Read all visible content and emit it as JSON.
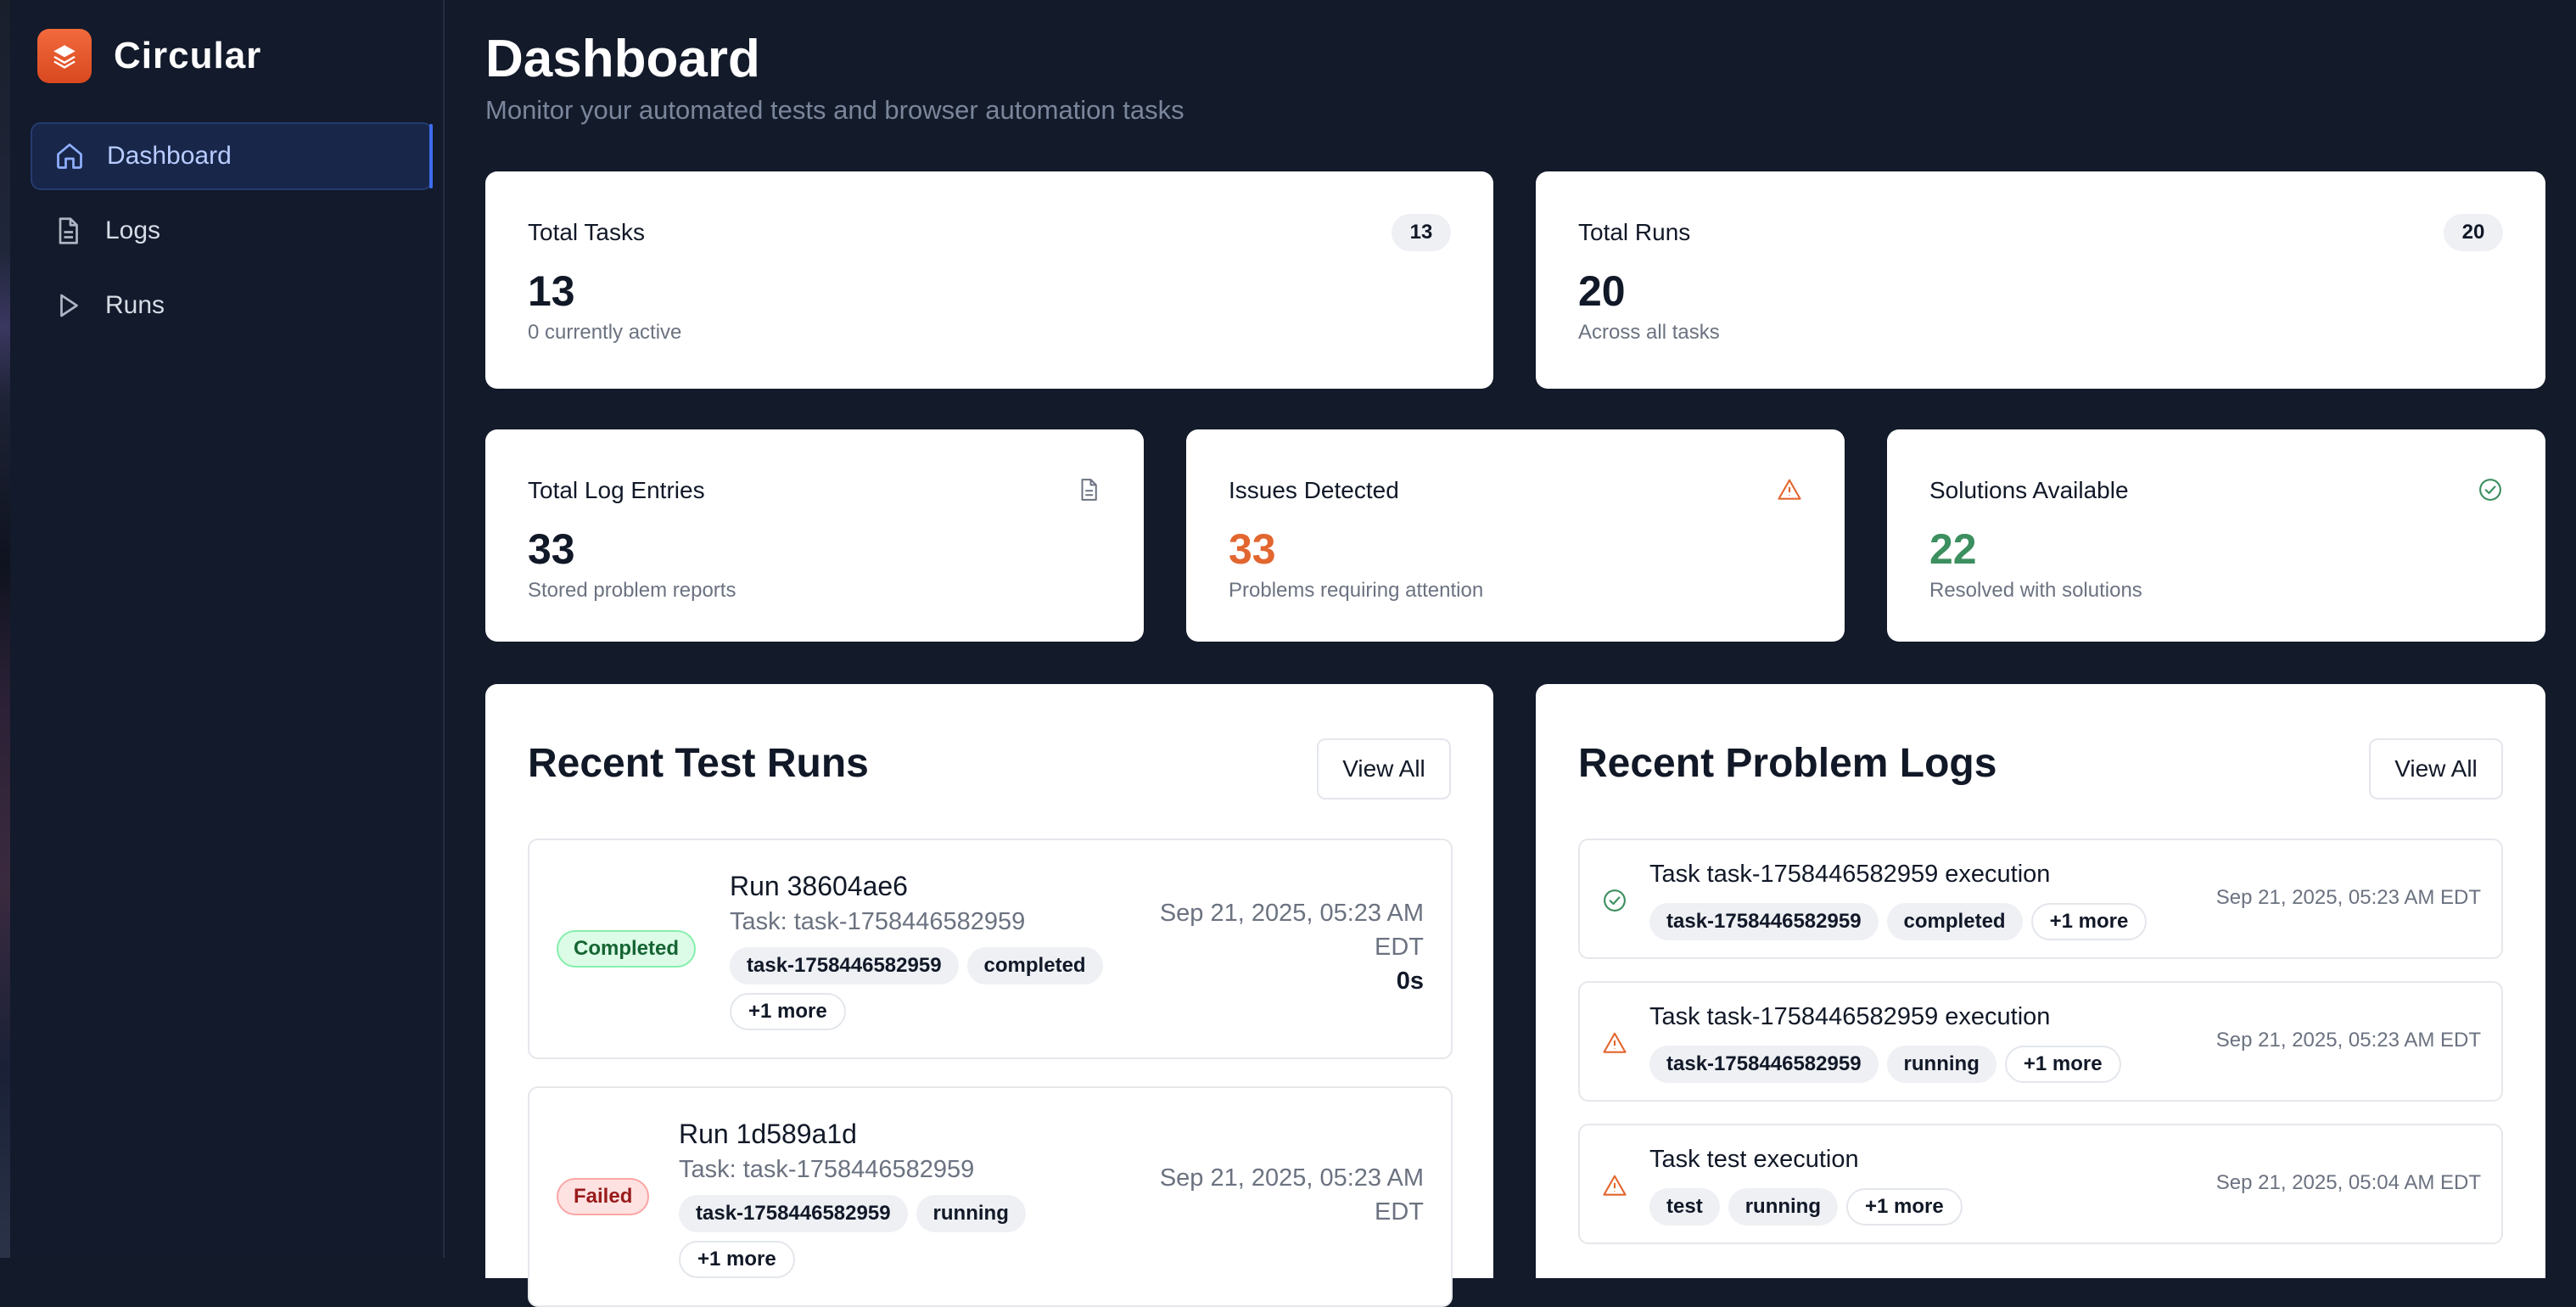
{
  "brand": {
    "name": "Circular"
  },
  "nav": [
    {
      "label": "Dashboard",
      "icon": "home-icon",
      "active": true
    },
    {
      "label": "Logs",
      "icon": "file-icon"
    },
    {
      "label": "Runs",
      "icon": "play-icon"
    }
  ],
  "header": {
    "title": "Dashboard",
    "subtitle": "Monitor your automated tests and browser automation tasks"
  },
  "stats": {
    "total_tasks": {
      "title": "Total Tasks",
      "badge": "13",
      "value": "13",
      "sub": "0 currently active"
    },
    "total_runs": {
      "title": "Total Runs",
      "badge": "20",
      "value": "20",
      "sub": "Across all tasks"
    },
    "log_entries": {
      "title": "Total Log Entries",
      "value": "33",
      "sub": "Stored problem reports",
      "icon": "file-icon"
    },
    "issues": {
      "title": "Issues Detected",
      "value": "33",
      "sub": "Problems requiring attention",
      "icon": "warning-icon",
      "color": "#e2662f"
    },
    "solutions": {
      "title": "Solutions Available",
      "value": "22",
      "sub": "Resolved with solutions",
      "icon": "check-circle-icon",
      "color": "#3c8f5f"
    }
  },
  "recent_runs": {
    "title": "Recent Test Runs",
    "view_all": "View All",
    "items": [
      {
        "status": "Completed",
        "name": "Run 38604ae6",
        "task": "Task: task-1758446582959",
        "tags": [
          "task-1758446582959",
          "completed"
        ],
        "more": "+1 more",
        "date_line1": "Sep 21, 2025, 05:23 AM",
        "date_line2": "EDT",
        "duration": "0s"
      },
      {
        "status": "Failed",
        "name": "Run 1d589a1d",
        "task": "Task: task-1758446582959",
        "tags": [
          "task-1758446582959",
          "running"
        ],
        "more": "+1 more",
        "date_line1": "Sep 21, 2025, 05:23 AM",
        "date_line2": "EDT"
      }
    ]
  },
  "recent_logs": {
    "title": "Recent Problem Logs",
    "view_all": "View All",
    "items": [
      {
        "icon": "check-circle-icon",
        "title": "Task task-1758446582959 execution",
        "tags": [
          "task-1758446582959",
          "completed"
        ],
        "more": "+1 more",
        "date": "Sep 21, 2025, 05:23 AM EDT"
      },
      {
        "icon": "warning-icon",
        "title": "Task task-1758446582959 execution",
        "tags": [
          "task-1758446582959",
          "running"
        ],
        "more": "+1 more",
        "date": "Sep 21, 2025, 05:23 AM EDT"
      },
      {
        "icon": "warning-icon",
        "title": "Task test execution",
        "tags": [
          "test",
          "running"
        ],
        "more": "+1 more",
        "date": "Sep 21, 2025, 05:04 AM EDT"
      }
    ]
  }
}
